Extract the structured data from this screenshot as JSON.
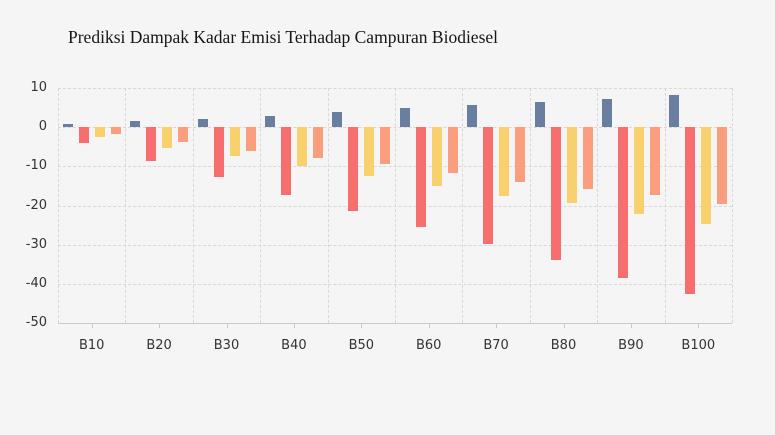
{
  "page": {
    "background_color": "#f5f5f5",
    "gridline_color": "#d8d8d8",
    "axis_line_color": "#c9c9c9",
    "tick_label_color": "#333333",
    "title_color": "#151515"
  },
  "chart_data": {
    "type": "bar",
    "title": "Prediksi Dampak Kadar Emisi Terhadap Campuran Biodiesel",
    "categories": [
      "B10",
      "B20",
      "B30",
      "B40",
      "B50",
      "B60",
      "B70",
      "B80",
      "B90",
      "B100"
    ],
    "series": [
      {
        "name": "slate-blue",
        "color": "#6a7fa0",
        "values": [
          0.8,
          1.5,
          2.2,
          2.9,
          3.9,
          4.9,
          5.6,
          6.4,
          7.1,
          8.1
        ]
      },
      {
        "name": "red",
        "color": "#f76e6e",
        "values": [
          -4.0,
          -8.6,
          -12.8,
          -17.2,
          -21.5,
          -25.4,
          -29.8,
          -34.0,
          -38.5,
          -42.7
        ]
      },
      {
        "name": "yellow",
        "color": "#f8d16e",
        "values": [
          -2.5,
          -5.3,
          -7.3,
          -9.9,
          -12.5,
          -15.0,
          -17.5,
          -19.3,
          -22.1,
          -24.7
        ]
      },
      {
        "name": "orange",
        "color": "#fb9e7d",
        "values": [
          -1.7,
          -3.7,
          -6.0,
          -7.8,
          -9.5,
          -11.7,
          -13.9,
          -15.8,
          -17.4,
          -19.5
        ]
      }
    ],
    "xlabel": "",
    "ylabel": "",
    "ylim": [
      -50,
      10
    ],
    "yticks": [
      10,
      0,
      -10,
      -20,
      -30,
      -40,
      -50
    ],
    "grid": true,
    "legend_position": "none"
  }
}
